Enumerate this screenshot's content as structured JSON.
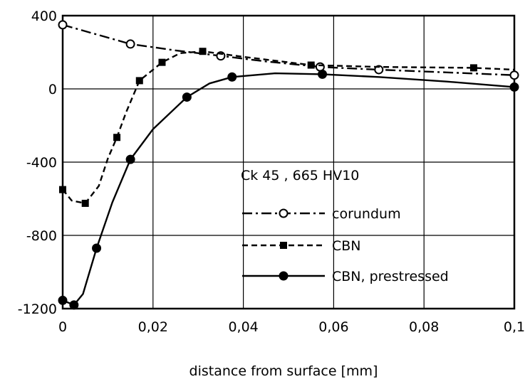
{
  "chart_data": {
    "type": "line",
    "title": "",
    "xlabel": "distance from surface [mm]",
    "ylabel": "",
    "xlim": [
      0,
      0.1
    ],
    "ylim": [
      -1200,
      400
    ],
    "x_ticks": [
      0,
      0.02,
      0.04,
      0.06,
      0.08,
      0.1
    ],
    "x_tick_labels": [
      "0",
      "0,02",
      "0,04",
      "0,06",
      "0,08",
      "0,1"
    ],
    "y_ticks": [
      -1200,
      -800,
      -400,
      0,
      400
    ],
    "y_tick_labels": [
      "-1200",
      "-800",
      "-400",
      "0",
      "400"
    ],
    "grid": true,
    "annotation": "Ck 45 ,  665 HV10",
    "legend_position": "right",
    "series": [
      {
        "name": "corundum",
        "marker": "open-circle",
        "line_style": "dash-dot",
        "points": [
          [
            0,
            350
          ],
          [
            0.015,
            245
          ],
          [
            0.035,
            180
          ],
          [
            0.057,
            120
          ],
          [
            0.07,
            105
          ],
          [
            0.1,
            75
          ]
        ],
        "curve": [
          [
            0,
            350
          ],
          [
            0.01,
            280
          ],
          [
            0.015,
            245
          ],
          [
            0.025,
            210
          ],
          [
            0.035,
            180
          ],
          [
            0.045,
            150
          ],
          [
            0.057,
            120
          ],
          [
            0.07,
            105
          ],
          [
            0.085,
            90
          ],
          [
            0.1,
            75
          ]
        ]
      },
      {
        "name": "CBN",
        "marker": "filled-square",
        "line_style": "dashed",
        "points": [
          [
            0,
            -550
          ],
          [
            0.005,
            -625
          ],
          [
            0.012,
            -265
          ],
          [
            0.017,
            45
          ],
          [
            0.022,
            145
          ],
          [
            0.031,
            205
          ],
          [
            0.055,
            130
          ],
          [
            0.091,
            115
          ]
        ],
        "curve": [
          [
            0,
            -550
          ],
          [
            0.002,
            -610
          ],
          [
            0.005,
            -625
          ],
          [
            0.008,
            -530
          ],
          [
            0.01,
            -380
          ],
          [
            0.012,
            -265
          ],
          [
            0.014,
            -130
          ],
          [
            0.017,
            45
          ],
          [
            0.022,
            145
          ],
          [
            0.026,
            195
          ],
          [
            0.031,
            205
          ],
          [
            0.04,
            175
          ],
          [
            0.055,
            130
          ],
          [
            0.07,
            120
          ],
          [
            0.091,
            115
          ],
          [
            0.1,
            105
          ]
        ]
      },
      {
        "name": "CBN, prestressed",
        "marker": "filled-circle",
        "line_style": "solid",
        "points": [
          [
            0,
            -1155
          ],
          [
            0.0025,
            -1180
          ],
          [
            0.0075,
            -870
          ],
          [
            0.015,
            -385
          ],
          [
            0.0275,
            -45
          ],
          [
            0.0375,
            65
          ],
          [
            0.0575,
            80
          ],
          [
            0.1,
            10
          ]
        ],
        "curve": [
          [
            0,
            -1155
          ],
          [
            0.0025,
            -1180
          ],
          [
            0.0045,
            -1120
          ],
          [
            0.0075,
            -870
          ],
          [
            0.011,
            -620
          ],
          [
            0.015,
            -385
          ],
          [
            0.02,
            -220
          ],
          [
            0.0275,
            -45
          ],
          [
            0.0325,
            30
          ],
          [
            0.0375,
            65
          ],
          [
            0.047,
            85
          ],
          [
            0.0575,
            80
          ],
          [
            0.07,
            65
          ],
          [
            0.085,
            40
          ],
          [
            0.1,
            10
          ]
        ]
      }
    ]
  }
}
